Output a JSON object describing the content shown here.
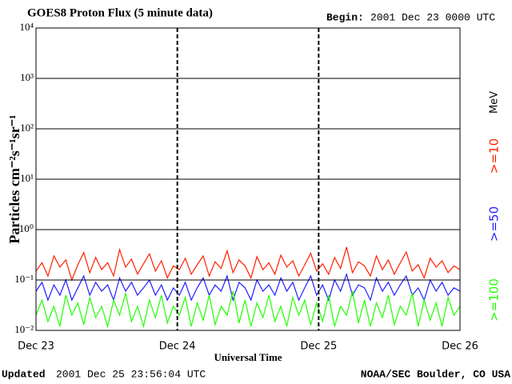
{
  "chart_data": {
    "type": "line",
    "title": "GOES8 Proton Flux (5 minute data)",
    "begin_label": "Begin:",
    "begin_value": "2001 Dec 23 0000 UTC",
    "y_label": "Particles cm⁻²s⁻¹sr⁻¹",
    "x_label": "Universal Time",
    "updated_label": "Updated",
    "updated_value": "2001 Dec 25 23:56:04 UTC",
    "credit": "NOAA/SEC Boulder, CO USA",
    "legend_unit": "MeV",
    "log_y": true,
    "grid": true,
    "ylim": [
      0.01,
      10000
    ],
    "yticks": [
      {
        "value": 0.01,
        "label": "10⁻²"
      },
      {
        "value": 0.1,
        "label": "10⁻¹"
      },
      {
        "value": 1,
        "label": "10⁰"
      },
      {
        "value": 10,
        "label": "10¹"
      },
      {
        "value": 100,
        "label": "10²"
      },
      {
        "value": 1000,
        "label": "10³"
      },
      {
        "value": 10000,
        "label": "10⁴"
      }
    ],
    "xticks": [
      "Dec 23",
      "Dec 24",
      "Dec 25",
      "Dec 26"
    ],
    "series": [
      {
        "name": ">=10",
        "color": "#ff2000",
        "values": [
          0.15,
          0.22,
          0.12,
          0.3,
          0.18,
          0.25,
          0.1,
          0.2,
          0.35,
          0.14,
          0.28,
          0.16,
          0.22,
          0.12,
          0.4,
          0.18,
          0.26,
          0.13,
          0.21,
          0.33,
          0.15,
          0.24,
          0.11,
          0.19,
          0.16,
          0.27,
          0.13,
          0.2,
          0.3,
          0.12,
          0.23,
          0.17,
          0.38,
          0.14,
          0.25,
          0.19,
          0.11,
          0.29,
          0.16,
          0.22,
          0.13,
          0.31,
          0.18,
          0.24,
          0.12,
          0.2,
          0.34,
          0.15,
          0.21,
          0.13,
          0.28,
          0.17,
          0.45,
          0.14,
          0.23,
          0.19,
          0.12,
          0.3,
          0.16,
          0.25,
          0.13,
          0.22,
          0.36,
          0.15,
          0.2,
          0.11,
          0.27,
          0.18,
          0.24,
          0.14,
          0.19,
          0.16
        ]
      },
      {
        "name": ">=50",
        "color": "#2020ff",
        "values": [
          0.06,
          0.09,
          0.04,
          0.08,
          0.05,
          0.1,
          0.04,
          0.07,
          0.12,
          0.05,
          0.09,
          0.06,
          0.08,
          0.04,
          0.11,
          0.06,
          0.09,
          0.05,
          0.07,
          0.1,
          0.05,
          0.08,
          0.04,
          0.07,
          0.05,
          0.09,
          0.04,
          0.07,
          0.11,
          0.05,
          0.08,
          0.06,
          0.12,
          0.04,
          0.09,
          0.07,
          0.04,
          0.1,
          0.06,
          0.08,
          0.05,
          0.11,
          0.06,
          0.09,
          0.04,
          0.07,
          0.12,
          0.05,
          0.08,
          0.04,
          0.1,
          0.06,
          0.13,
          0.05,
          0.08,
          0.07,
          0.04,
          0.11,
          0.06,
          0.09,
          0.05,
          0.08,
          0.12,
          0.05,
          0.07,
          0.04,
          0.1,
          0.06,
          0.09,
          0.05,
          0.07,
          0.06
        ]
      },
      {
        "name": ">=100",
        "color": "#20ff00",
        "values": [
          0.02,
          0.04,
          0.015,
          0.03,
          0.012,
          0.05,
          0.02,
          0.035,
          0.013,
          0.045,
          0.018,
          0.03,
          0.012,
          0.04,
          0.02,
          0.055,
          0.015,
          0.03,
          0.012,
          0.04,
          0.018,
          0.05,
          0.014,
          0.03,
          0.02,
          0.045,
          0.012,
          0.035,
          0.016,
          0.05,
          0.013,
          0.03,
          0.02,
          0.06,
          0.014,
          0.04,
          0.012,
          0.035,
          0.018,
          0.05,
          0.015,
          0.03,
          0.012,
          0.045,
          0.02,
          0.04,
          0.013,
          0.035,
          0.015,
          0.05,
          0.012,
          0.03,
          0.02,
          0.06,
          0.014,
          0.04,
          0.012,
          0.035,
          0.018,
          0.05,
          0.013,
          0.03,
          0.02,
          0.055,
          0.012,
          0.04,
          0.016,
          0.035,
          0.012,
          0.045,
          0.02,
          0.03
        ]
      }
    ]
  }
}
